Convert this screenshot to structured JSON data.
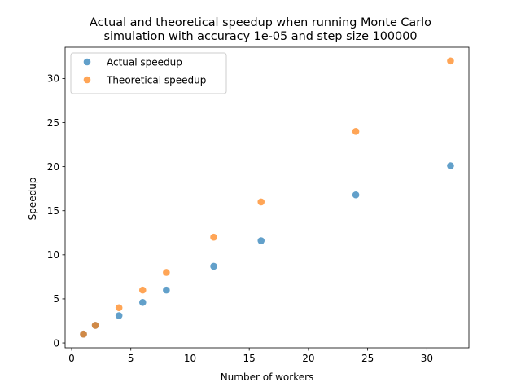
{
  "chart_data": {
    "type": "scatter",
    "title_lines": [
      "Actual and theoretical speedup when running Monte Carlo",
      "simulation with accuracy 1e-05 and step size 100000"
    ],
    "xlabel": "Number of workers",
    "ylabel": "Speedup",
    "xlim": [
      -0.55,
      33.55
    ],
    "ylim": [
      -0.55,
      33.55
    ],
    "xticks": [
      0,
      5,
      10,
      15,
      20,
      25,
      30
    ],
    "yticks": [
      0,
      5,
      10,
      15,
      20,
      25,
      30
    ],
    "grid": false,
    "legend_position": "upper left",
    "series": [
      {
        "name": "Actual speedup",
        "color": "#1f77b4",
        "points": [
          [
            1,
            1.0
          ],
          [
            2,
            2.0
          ],
          [
            4,
            3.1
          ],
          [
            6,
            4.6
          ],
          [
            8,
            6.0
          ],
          [
            12,
            8.7
          ],
          [
            16,
            11.6
          ],
          [
            24,
            16.8
          ],
          [
            32,
            20.1
          ]
        ]
      },
      {
        "name": "Theoretical speedup",
        "color": "#ff7f0e",
        "points": [
          [
            1,
            1
          ],
          [
            2,
            2
          ],
          [
            4,
            4
          ],
          [
            6,
            6
          ],
          [
            8,
            8
          ],
          [
            12,
            12
          ],
          [
            16,
            16
          ],
          [
            24,
            24
          ],
          [
            32,
            32
          ]
        ]
      }
    ]
  }
}
